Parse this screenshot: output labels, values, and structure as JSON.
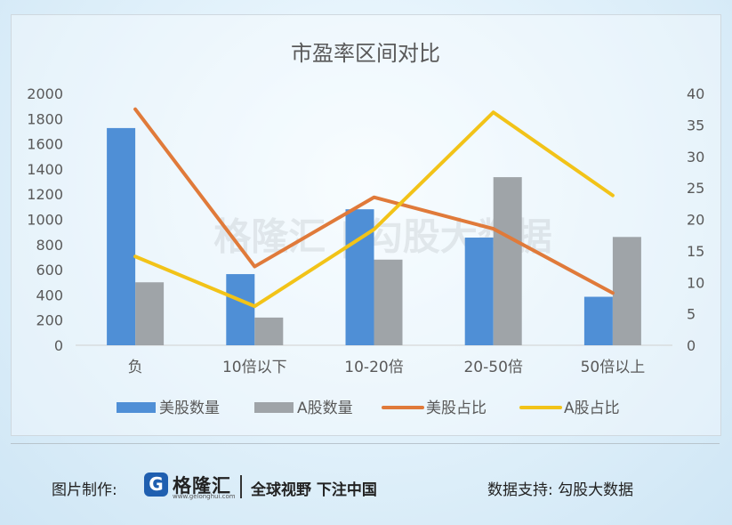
{
  "chart_data": {
    "type": "bar",
    "title": "市盈率区间对比",
    "categories": [
      "负",
      "10倍以下",
      "10-20倍",
      "20-50倍",
      "50倍以上"
    ],
    "bar_series": [
      {
        "name": "美股数量",
        "color": "#4f8fd6",
        "values": [
          1725,
          565,
          1080,
          855,
          385
        ]
      },
      {
        "name": "A股数量",
        "color": "#9fa4a8",
        "values": [
          500,
          220,
          680,
          1335,
          860
        ]
      }
    ],
    "line_series": [
      {
        "name": "美股占比",
        "color": "#e07a3a",
        "values": [
          37.5,
          12.5,
          23.5,
          18.5,
          8.3
        ]
      },
      {
        "name": "A股占比",
        "color": "#f2c318",
        "values": [
          14.1,
          6.2,
          18.4,
          37.0,
          23.8
        ]
      }
    ],
    "y_left": {
      "min": 0,
      "max": 2000,
      "step": 200,
      "ticks": [
        "0",
        "200",
        "400",
        "600",
        "800",
        "1000",
        "1200",
        "1400",
        "1600",
        "1800",
        "2000"
      ]
    },
    "y_right": {
      "min": 0,
      "max": 40,
      "step": 5,
      "ticks": [
        "0",
        "5",
        "10",
        "15",
        "20",
        "25",
        "30",
        "35",
        "40"
      ]
    },
    "legend_position": "bottom",
    "watermark": "格隆汇 | 勾股大数据"
  },
  "footer": {
    "made_by_label": "图片制作:",
    "logo_text": "格隆汇",
    "logo_sub": "www.gelonghui.com",
    "slogan": "全球视野 下注中国",
    "support": "数据支持: 勾股大数据"
  }
}
